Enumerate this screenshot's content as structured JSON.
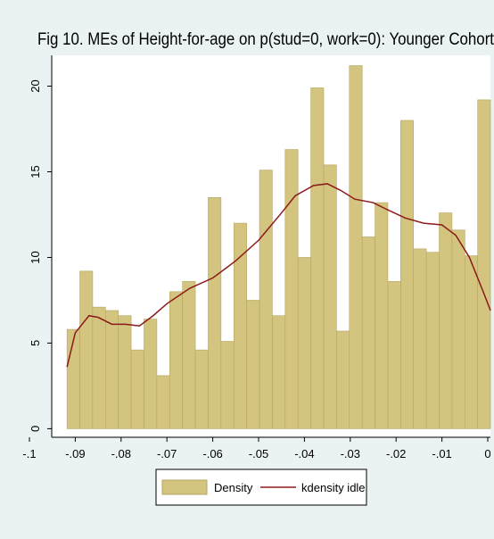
{
  "chart_data": {
    "type": "histogram",
    "title": "Fig 10. MEs of Height-for-age on p(stud=0, work=0): Younger Cohort",
    "xlim": [
      -0.1,
      0
    ],
    "ylim": [
      -0.5,
      21.8
    ],
    "xticks": [
      {
        "value": -0.1,
        "label": "-.1"
      },
      {
        "value": -0.09,
        "label": "-.09"
      },
      {
        "value": -0.08,
        "label": "-.08"
      },
      {
        "value": -0.07,
        "label": "-.07"
      },
      {
        "value": -0.06,
        "label": "-.06"
      },
      {
        "value": -0.05,
        "label": "-.05"
      },
      {
        "value": -0.04,
        "label": "-.04"
      },
      {
        "value": -0.03,
        "label": "-.03"
      },
      {
        "value": -0.02,
        "label": "-.02"
      },
      {
        "value": -0.01,
        "label": "-.01"
      },
      0
    ],
    "yticks": [
      0,
      5,
      10,
      15,
      20
    ],
    "series": [
      {
        "name": "Density",
        "type": "histogram",
        "color": "#d3c47f",
        "bins": [
          -0.0918,
          -0.089,
          -0.0862,
          -0.0834,
          -0.0806,
          -0.0778,
          -0.075,
          -0.0722,
          -0.0694,
          -0.0666,
          -0.0638,
          -0.061,
          -0.0582,
          -0.0554,
          -0.0526,
          -0.0498,
          -0.047,
          -0.0442,
          -0.0414,
          -0.0386,
          -0.0358,
          -0.033,
          -0.0302,
          -0.0274,
          -0.0246,
          -0.0218,
          -0.019,
          -0.0162,
          -0.0134,
          -0.0106,
          -0.0078,
          -0.005,
          -0.0022,
          0.0006
        ],
        "values": [
          5.8,
          9.2,
          7.1,
          6.9,
          6.6,
          4.6,
          6.4,
          3.1,
          8.0,
          8.6,
          4.6,
          13.5,
          5.1,
          12.0,
          7.5,
          15.1,
          6.6,
          16.3,
          10.0,
          19.9,
          15.4,
          5.7,
          21.2,
          11.2,
          13.2,
          8.6,
          18.0,
          10.5,
          10.3,
          12.6,
          11.6,
          10.1,
          19.2
        ]
      },
      {
        "name": "kdensity idle",
        "type": "line",
        "color": "#8b1a1a",
        "x": [
          -0.0918,
          -0.09,
          -0.087,
          -0.085,
          -0.082,
          -0.079,
          -0.076,
          -0.073,
          -0.07,
          -0.065,
          -0.06,
          -0.055,
          -0.05,
          -0.045,
          -0.042,
          -0.038,
          -0.035,
          -0.032,
          -0.029,
          -0.025,
          -0.022,
          -0.018,
          -0.014,
          -0.01,
          -0.007,
          -0.004,
          -0.001,
          0.0006
        ],
        "values": [
          3.6,
          5.6,
          6.6,
          6.5,
          6.1,
          6.1,
          6.0,
          6.6,
          7.3,
          8.2,
          8.8,
          9.8,
          11.0,
          12.6,
          13.6,
          14.2,
          14.3,
          13.9,
          13.4,
          13.2,
          12.8,
          12.3,
          12.0,
          11.9,
          11.3,
          10.0,
          8.0,
          6.9
        ]
      }
    ]
  }
}
